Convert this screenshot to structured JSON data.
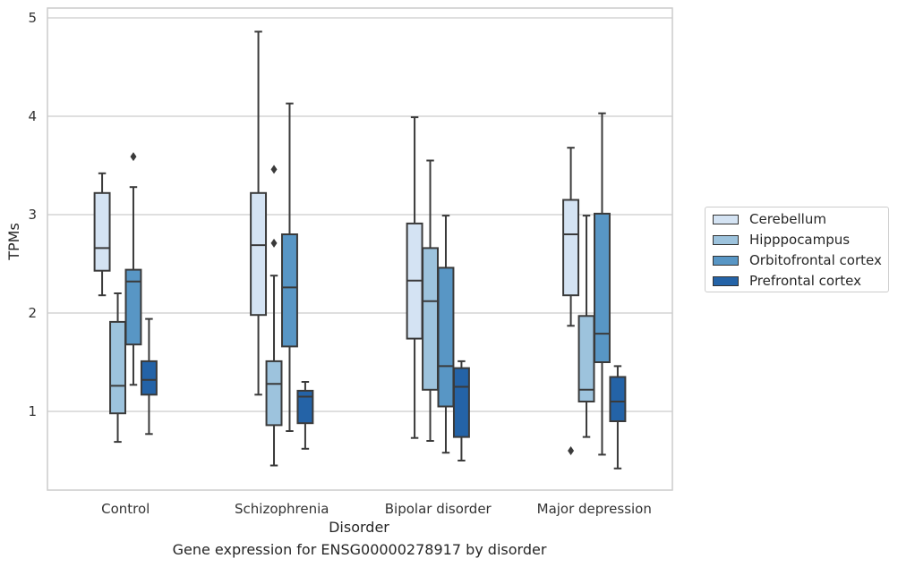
{
  "caption": "Gene expression for ENSG00000278917 by disorder",
  "chart_data": {
    "type": "box",
    "title": "",
    "xlabel": "Disorder",
    "ylabel": "TPMs",
    "ylim": [
      0.2,
      5.1
    ],
    "yticks": [
      "1",
      "2",
      "3",
      "4",
      "5"
    ],
    "grid": true,
    "legend_position": "right",
    "categories": [
      "Control",
      "Schizophrenia",
      "Bipolar disorder",
      "Major depression"
    ],
    "series": [
      {
        "name": "Cerebellum",
        "color": "#d4e3f3",
        "boxes": [
          {
            "whisker_low": 2.18,
            "q1": 2.43,
            "median": 2.66,
            "q3": 3.22,
            "whisker_high": 3.42,
            "outliers": []
          },
          {
            "whisker_low": 1.17,
            "q1": 1.98,
            "median": 2.69,
            "q3": 3.22,
            "whisker_high": 4.86,
            "outliers": []
          },
          {
            "whisker_low": 0.73,
            "q1": 1.74,
            "median": 2.33,
            "q3": 2.91,
            "whisker_high": 3.99,
            "outliers": []
          },
          {
            "whisker_low": 1.87,
            "q1": 2.18,
            "median": 2.8,
            "q3": 3.15,
            "whisker_high": 3.68,
            "outliers": [
              0.6
            ]
          }
        ]
      },
      {
        "name": "Hipppocampus",
        "color": "#9dc3dd",
        "boxes": [
          {
            "whisker_low": 0.69,
            "q1": 0.98,
            "median": 1.26,
            "q3": 1.91,
            "whisker_high": 2.2,
            "outliers": []
          },
          {
            "whisker_low": 0.45,
            "q1": 0.86,
            "median": 1.28,
            "q3": 1.51,
            "whisker_high": 2.38,
            "outliers": [
              2.71,
              3.46
            ]
          },
          {
            "whisker_low": 0.7,
            "q1": 1.22,
            "median": 2.12,
            "q3": 2.66,
            "whisker_high": 3.55,
            "outliers": []
          },
          {
            "whisker_low": 0.74,
            "q1": 1.1,
            "median": 1.22,
            "q3": 1.97,
            "whisker_high": 2.99,
            "outliers": []
          }
        ]
      },
      {
        "name": "Orbitofrontal cortex",
        "color": "#5896c5",
        "boxes": [
          {
            "whisker_low": 1.27,
            "q1": 1.68,
            "median": 2.32,
            "q3": 2.44,
            "whisker_high": 3.28,
            "outliers": [
              3.59
            ]
          },
          {
            "whisker_low": 0.8,
            "q1": 1.66,
            "median": 2.26,
            "q3": 2.8,
            "whisker_high": 4.13,
            "outliers": []
          },
          {
            "whisker_low": 0.58,
            "q1": 1.05,
            "median": 1.46,
            "q3": 2.46,
            "whisker_high": 2.99,
            "outliers": []
          },
          {
            "whisker_low": 0.56,
            "q1": 1.5,
            "median": 1.79,
            "q3": 3.01,
            "whisker_high": 4.03,
            "outliers": []
          }
        ]
      },
      {
        "name": "Prefrontal cortex",
        "color": "#2463a7",
        "boxes": [
          {
            "whisker_low": 0.77,
            "q1": 1.17,
            "median": 1.32,
            "q3": 1.51,
            "whisker_high": 1.94,
            "outliers": []
          },
          {
            "whisker_low": 0.62,
            "q1": 0.88,
            "median": 1.15,
            "q3": 1.21,
            "whisker_high": 1.3,
            "outliers": []
          },
          {
            "whisker_low": 0.5,
            "q1": 0.74,
            "median": 1.25,
            "q3": 1.44,
            "whisker_high": 1.51,
            "outliers": []
          },
          {
            "whisker_low": 0.42,
            "q1": 0.9,
            "median": 1.1,
            "q3": 1.35,
            "whisker_high": 1.46,
            "outliers": []
          }
        ]
      }
    ]
  }
}
